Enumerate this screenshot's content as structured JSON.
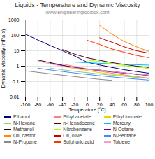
{
  "chart_data": {
    "type": "line",
    "title": "Liquids - Temperature and Dynamic Viscosity",
    "subtitle": "www.engineeringtoolbox.com",
    "xlabel": "Temperature [°C]",
    "ylabel": "Dynamic Viscosity (mPa·s)",
    "xlim": [
      -100,
      100
    ],
    "xticks": [
      -100,
      -80,
      -60,
      -40,
      -20,
      0,
      20,
      40,
      60,
      80,
      100
    ],
    "ylim": [
      0.01,
      1000
    ],
    "yticks": [
      0.01,
      0.1,
      1,
      10,
      100,
      1000
    ],
    "log": "y",
    "grid": true,
    "legend": "bottom",
    "series": [
      {
        "name": "Ethanol",
        "color": "#000080",
        "x": [
          -100,
          -80,
          -60,
          -40,
          -20,
          0,
          20,
          40,
          60,
          80,
          100
        ],
        "values": [
          120,
          50,
          22,
          10,
          4.5,
          1.8,
          1.2,
          0.83,
          0.59,
          0.45,
          0.35
        ]
      },
      {
        "name": "Ethyl acetate",
        "color": "#FF8080",
        "x": [
          -40,
          -20,
          0,
          20,
          40,
          60,
          80,
          100
        ],
        "values": [
          1.4,
          0.95,
          0.68,
          0.47,
          0.35,
          0.27,
          0.21,
          0.17
        ]
      },
      {
        "name": "Ethyl formate",
        "color": "#DDDD00",
        "x": [
          -40,
          -20,
          0,
          20,
          40,
          60,
          80,
          100
        ],
        "values": [
          0.95,
          0.7,
          0.52,
          0.38,
          0.3,
          0.24,
          0.19,
          0.16
        ]
      },
      {
        "name": "N-Hexane",
        "color": "#88CC88",
        "x": [
          -60,
          -40,
          -20,
          0,
          20,
          40,
          60,
          80,
          100
        ],
        "values": [
          0.75,
          0.58,
          0.46,
          0.38,
          0.31,
          0.26,
          0.22,
          0.19,
          0.16
        ]
      },
      {
        "name": "n-Hexadecane",
        "color": "#4B0000",
        "x": [
          -40,
          -20,
          0,
          20,
          40,
          60,
          80,
          100
        ],
        "values": [
          12,
          6,
          3.5,
          2.4,
          1.7,
          1.3,
          1.0,
          0.82
        ]
      },
      {
        "name": "Mercury",
        "color": "#00BBFF",
        "x": [
          -20,
          0,
          20,
          40,
          60,
          80,
          100
        ],
        "values": [
          1.85,
          1.68,
          1.53,
          1.42,
          1.32,
          1.24,
          1.17
        ]
      },
      {
        "name": "Methanol",
        "color": "#111111",
        "x": [
          -80,
          -60,
          -40,
          -20,
          0,
          20,
          40,
          60,
          80,
          100
        ],
        "values": [
          2.5,
          1.7,
          1.15,
          0.82,
          0.62,
          0.56,
          0.45,
          0.37,
          0.3,
          0.25
        ]
      },
      {
        "name": "Nitrobenzene",
        "color": "#AAFF00",
        "x": [
          0,
          20,
          40,
          60,
          80,
          100
        ],
        "values": [
          2.5,
          1.97,
          1.45,
          1.1,
          0.87,
          0.71
        ]
      },
      {
        "name": "N-Octane",
        "color": "#800080",
        "x": [
          -60,
          -40,
          -20,
          0,
          20,
          40,
          60,
          80,
          100
        ],
        "values": [
          1.5,
          1.1,
          0.82,
          0.64,
          0.52,
          0.42,
          0.35,
          0.3,
          0.26
        ]
      },
      {
        "name": "Oil, castor",
        "color": "#FF8800",
        "x": [
          20,
          40,
          60,
          80,
          100
        ],
        "values": [
          450,
          120,
          40,
          18,
          9
        ]
      },
      {
        "name": "Oil, olive",
        "color": "#CC0000",
        "x": [
          20,
          40,
          60,
          80,
          100
        ],
        "values": [
          70,
          36,
          18,
          10,
          7
        ]
      },
      {
        "name": "N-Pentane",
        "color": "#4488FF",
        "x": [
          -80,
          -60,
          -40,
          -20,
          0,
          20,
          40,
          60,
          80,
          100
        ],
        "values": [
          0.75,
          0.57,
          0.45,
          0.36,
          0.29,
          0.24,
          0.2,
          0.17,
          0.145,
          0.125
        ]
      },
      {
        "name": "N-Propane",
        "color": "#888888",
        "x": [
          -100,
          -80,
          -60,
          -40,
          -20,
          0,
          20,
          40
        ],
        "values": [
          0.5,
          0.4,
          0.32,
          0.26,
          0.21,
          0.17,
          0.14,
          0.12
        ]
      },
      {
        "name": "Sulphuric acid",
        "color": "#FF3300",
        "x": [
          0,
          20,
          40,
          60,
          80,
          100
        ],
        "values": [
          48,
          26,
          13,
          8,
          5,
          3.5
        ]
      },
      {
        "name": "Toluene",
        "color": "#FF99CC",
        "x": [
          -80,
          -60,
          -40,
          -20,
          0,
          20,
          40,
          60,
          80,
          100
        ],
        "values": [
          2.2,
          1.4,
          1.0,
          0.76,
          0.59,
          0.56,
          0.45,
          0.37,
          0.31,
          0.26
        ]
      }
    ]
  }
}
